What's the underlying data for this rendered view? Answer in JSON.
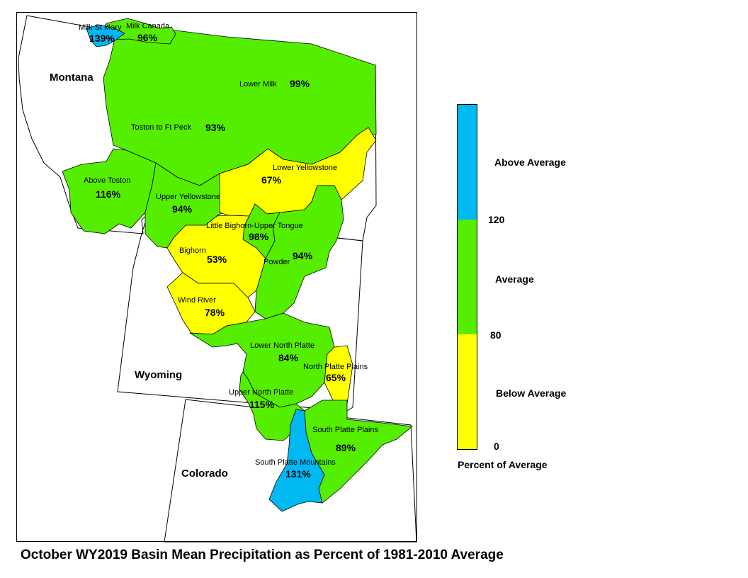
{
  "caption": "October WY2019 Basin Mean Precipitation as Percent of 1981-2010 Average",
  "colors": {
    "above": "#00b8f2",
    "average": "#55ee00",
    "below": "#ffff00"
  },
  "states": [
    {
      "name": "Montana"
    },
    {
      "name": "Wyoming"
    },
    {
      "name": "Colorado"
    }
  ],
  "basins": [
    {
      "name": "Milk St Mary",
      "percent": "139%",
      "category": "above"
    },
    {
      "name": "Milk Canada",
      "percent": "96%",
      "category": "average"
    },
    {
      "name": "Lower Milk",
      "percent": "99%",
      "category": "average"
    },
    {
      "name": "Toston to Ft Peck",
      "percent": "93%",
      "category": "average"
    },
    {
      "name": "Above Toston",
      "percent": "116%",
      "category": "average"
    },
    {
      "name": "Upper Yellowstone",
      "percent": "94%",
      "category": "average"
    },
    {
      "name": "Lower Yellowstone",
      "percent": "67%",
      "category": "below"
    },
    {
      "name": "Little Bighorn-Upper Tongue",
      "percent": "98%",
      "category": "average"
    },
    {
      "name": "Bighorn",
      "percent": "53%",
      "category": "below"
    },
    {
      "name": "Powder",
      "percent": "94%",
      "category": "average"
    },
    {
      "name": "Wind River",
      "percent": "78%",
      "category": "below"
    },
    {
      "name": "Lower North Platte",
      "percent": "84%",
      "category": "average"
    },
    {
      "name": "North Platte Plains",
      "percent": "65%",
      "category": "below"
    },
    {
      "name": "Upper North Platte",
      "percent": "115%",
      "category": "average"
    },
    {
      "name": "South Platte Plains",
      "percent": "89%",
      "category": "average"
    },
    {
      "name": "South Platte Mountains",
      "percent": "131%",
      "category": "above"
    }
  ],
  "legend": {
    "title": "Percent of Average",
    "classes": [
      {
        "label": "Above Average"
      },
      {
        "label": "Average"
      },
      {
        "label": "Below Average"
      }
    ],
    "breaks": [
      "120",
      "80",
      "0"
    ]
  }
}
